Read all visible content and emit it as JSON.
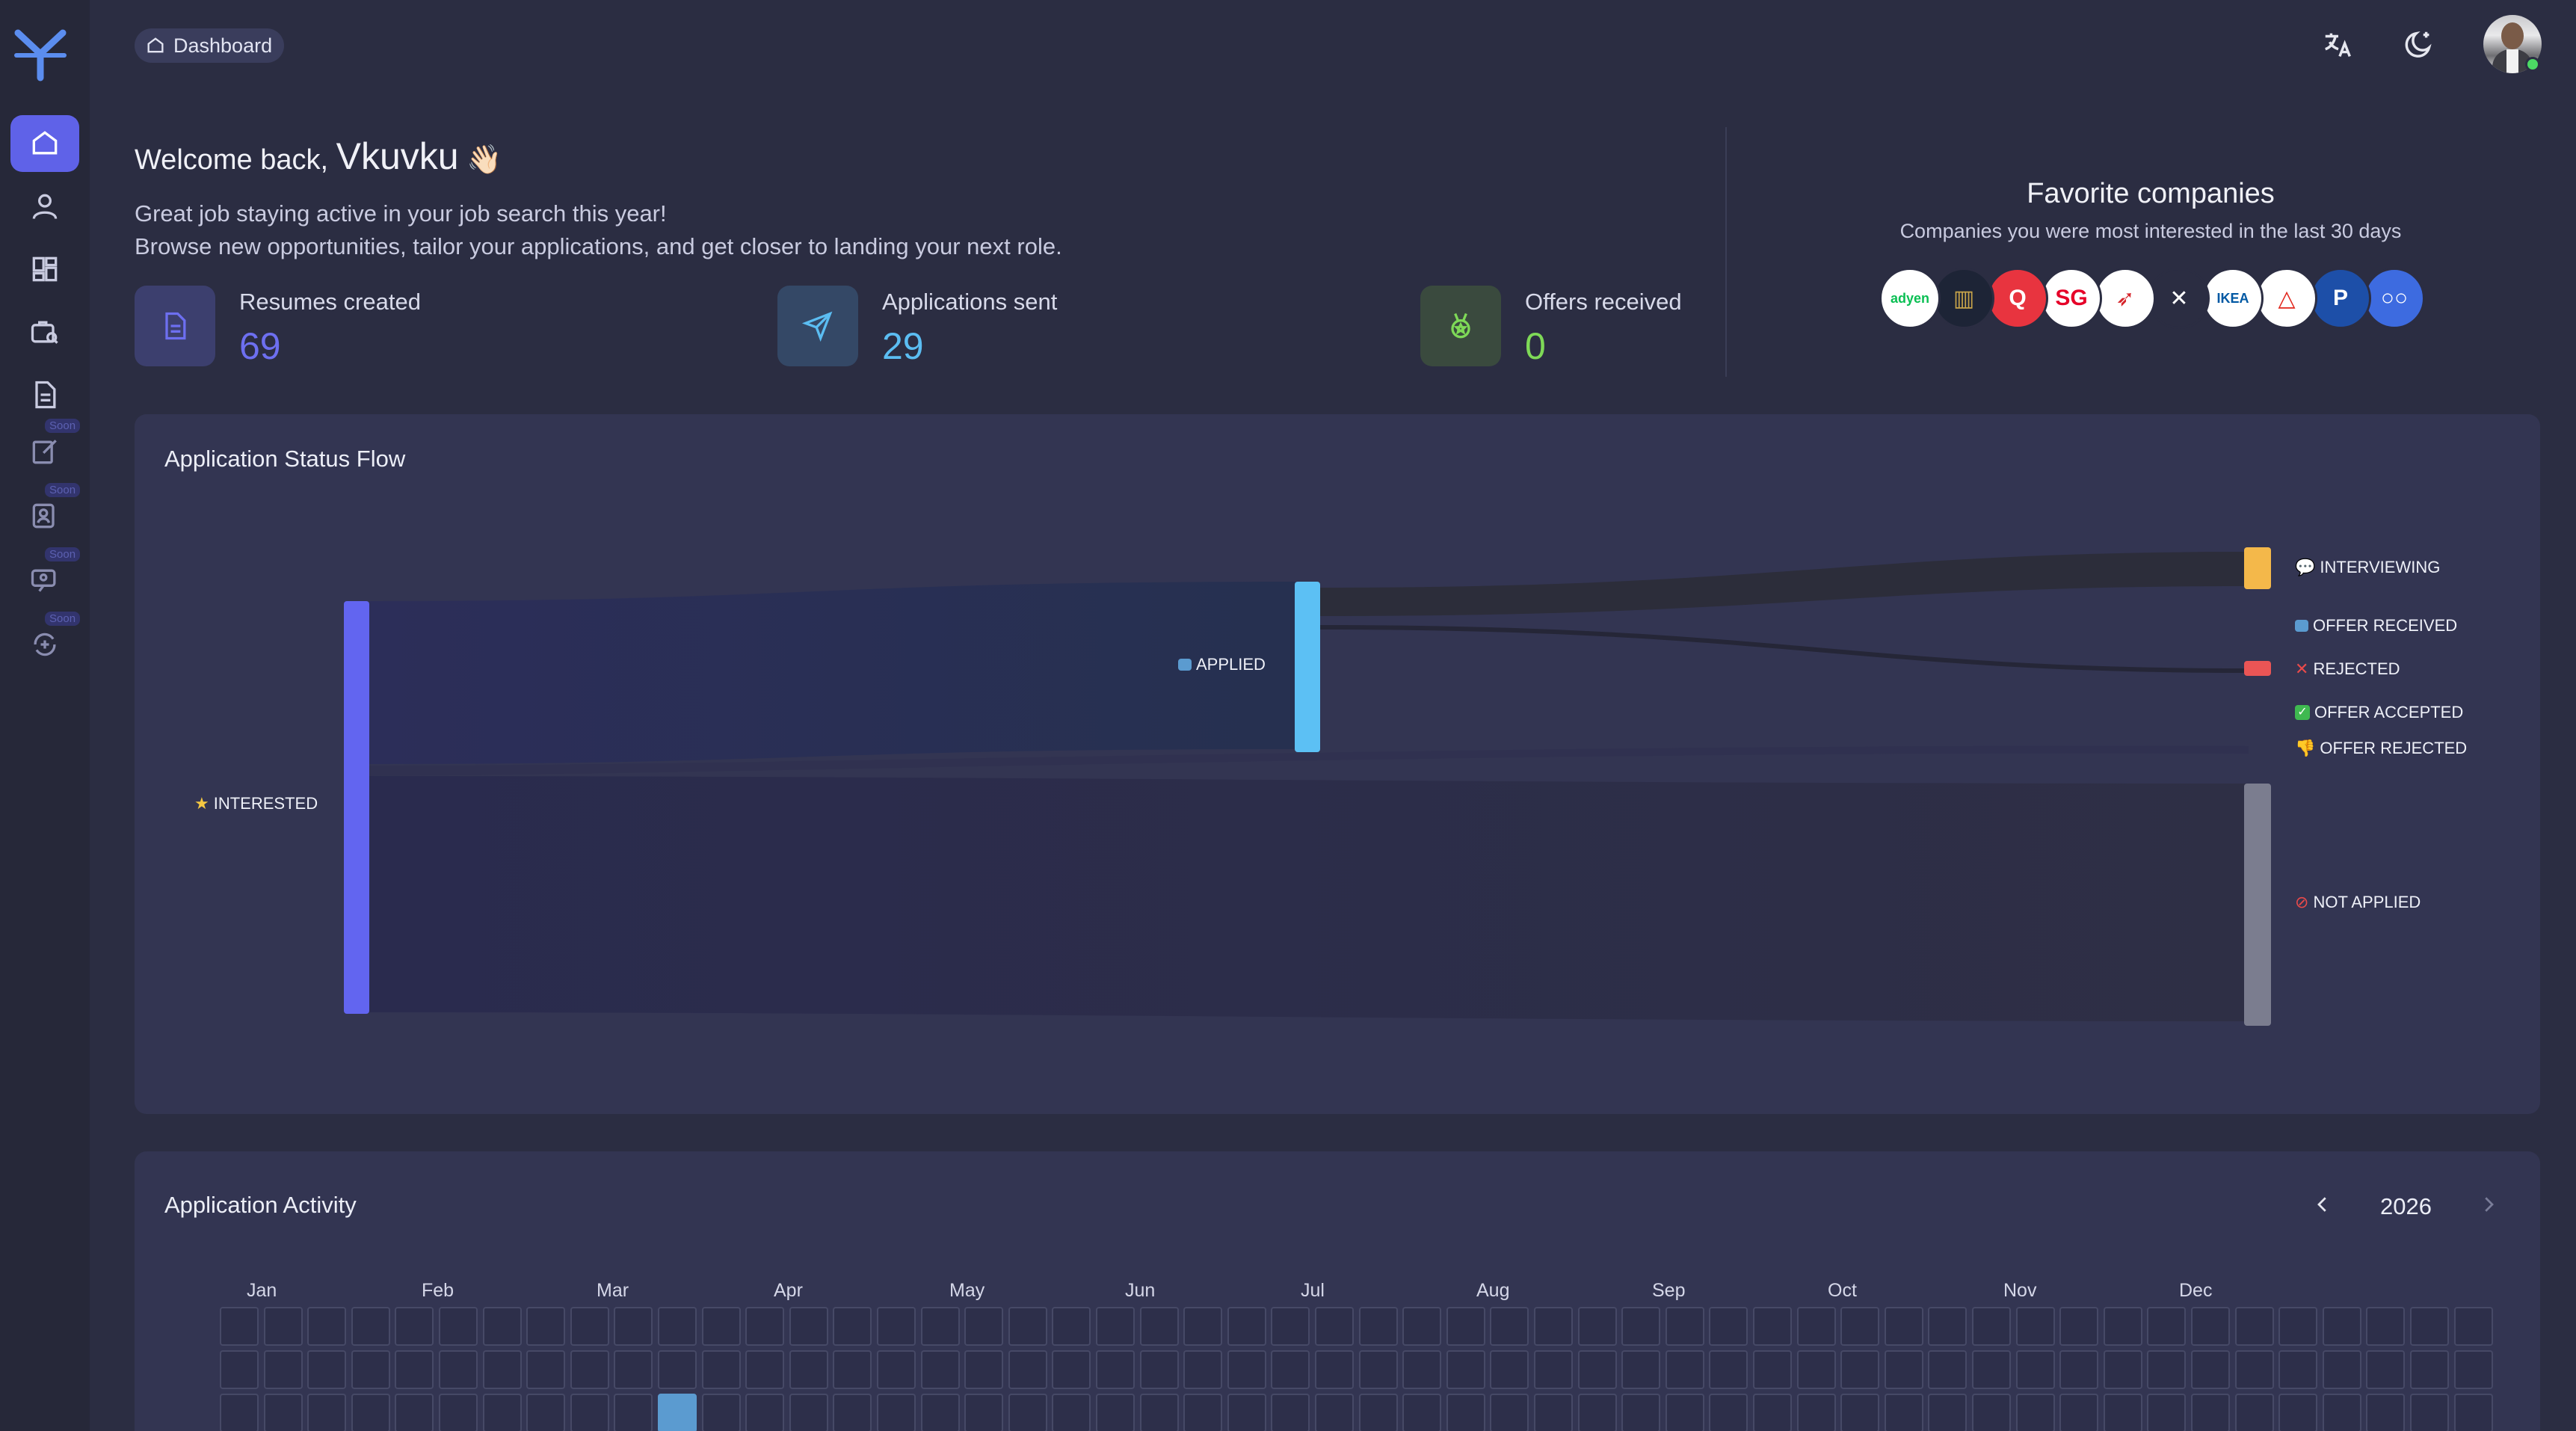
{
  "breadcrumb": {
    "label": "Dashboard"
  },
  "welcome": {
    "greeting": "Welcome back,",
    "name": "Vkuvku",
    "wave": "👋🏻",
    "line1": "Great job staying active in your job search this year!",
    "line2": "Browse new opportunities, tailor your applications, and get closer to landing your next role."
  },
  "stats": [
    {
      "label": "Resumes created",
      "value": "69",
      "color": "#6d6ff0",
      "box": "#3c3f6e"
    },
    {
      "label": "Applications sent",
      "value": "29",
      "color": "#5bbdf2",
      "box": "#344866"
    },
    {
      "label": "Offers received",
      "value": "0",
      "color": "#7ed957",
      "box": "#3a4a3e"
    }
  ],
  "favorites": {
    "title": "Favorite companies",
    "subtitle": "Companies you were most interested in the last 30 days",
    "companies": [
      {
        "name": "adyen",
        "text": "adyen",
        "bg": "#ffffff",
        "fg": "#0abf53"
      },
      {
        "name": "trading",
        "text": "▥",
        "bg": "#1d2436",
        "fg": "#c9a54a"
      },
      {
        "name": "q-logo",
        "text": "Q",
        "bg": "#e8343f",
        "fg": "#ffffff"
      },
      {
        "name": "sg",
        "text": "SG",
        "bg": "#ffffff",
        "fg": "#e60028"
      },
      {
        "name": "bird",
        "text": "➶",
        "bg": "#ffffff",
        "fg": "#d6252b"
      },
      {
        "name": "butterfly",
        "text": "✕",
        "bg": "#2b2d42",
        "fg": "#ffffff"
      },
      {
        "name": "ikea",
        "text": "IKEA",
        "bg": "#ffffff",
        "fg": "#0058a3"
      },
      {
        "name": "delta",
        "text": "△",
        "bg": "#ffffff",
        "fg": "#e1251b"
      },
      {
        "name": "p-logo",
        "text": "P",
        "bg": "#1d4fa8",
        "fg": "#ffffff"
      },
      {
        "name": "ring",
        "text": "○○",
        "bg": "#3d6be0",
        "fg": "#ffffff"
      }
    ]
  },
  "status_flow": {
    "title": "Application Status Flow",
    "nodes": {
      "interested": "INTERESTED",
      "applied": "APPLIED",
      "interviewing": "INTERVIEWING",
      "offer_received": "OFFER RECEIVED",
      "rejected": "REJECTED",
      "offer_accepted": "OFFER ACCEPTED",
      "offer_rejected": "OFFER REJECTED",
      "not_applied": "NOT APPLIED"
    }
  },
  "activity": {
    "title": "Application Activity",
    "year": "2026",
    "months": [
      "Jan",
      "Feb",
      "Mar",
      "Apr",
      "May",
      "Jun",
      "Jul",
      "Aug",
      "Sep",
      "Oct",
      "Nov",
      "Dec"
    ],
    "active_cells": [
      {
        "week": 10,
        "day": 2
      }
    ]
  }
}
